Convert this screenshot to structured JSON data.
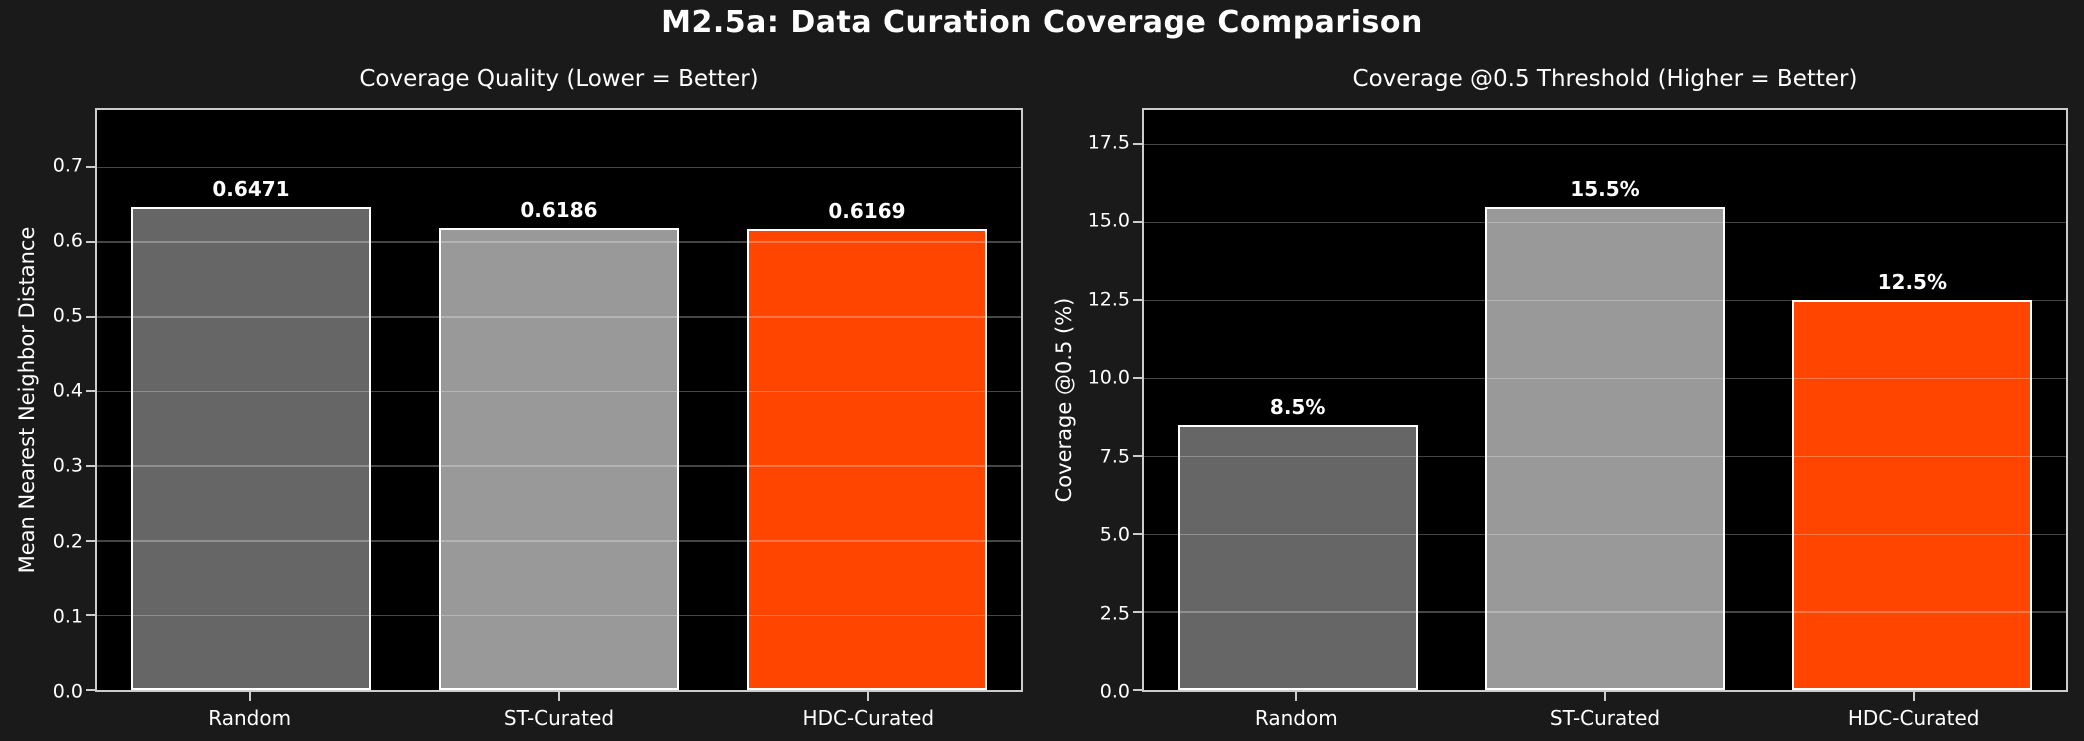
{
  "title": "M2.5a: Data Curation Coverage Comparison",
  "colors": {
    "figure_bg": "#1a1a1a",
    "plot_bg": "#000000",
    "text": "#ffffff",
    "spine": "#cccccc",
    "grid": "rgba(255,255,255,0.27)",
    "bar_edge": "#ffffff"
  },
  "chart_data": [
    {
      "type": "bar",
      "title": "Coverage Quality (Lower = Better)",
      "xlabel": "",
      "ylabel": "Mean Nearest Neighbor Distance",
      "categories": [
        "Random",
        "ST-Curated",
        "HDC-Curated"
      ],
      "values": [
        0.6471,
        0.6186,
        0.6169
      ],
      "value_labels": [
        "0.6471",
        "0.6186",
        "0.6169"
      ],
      "bar_colors": [
        "#666666",
        "#999999",
        "#ff4500"
      ],
      "ylim": [
        0,
        0.7765
      ],
      "yticks": [
        0.0,
        0.1,
        0.2,
        0.3,
        0.4,
        0.5,
        0.6,
        0.7
      ],
      "ytick_labels": [
        "0.0",
        "0.1",
        "0.2",
        "0.3",
        "0.4",
        "0.5",
        "0.6",
        "0.7"
      ],
      "grid": true,
      "legend": null
    },
    {
      "type": "bar",
      "title": "Coverage @0.5 Threshold (Higher = Better)",
      "xlabel": "",
      "ylabel": "Coverage @0.5 (%)",
      "categories": [
        "Random",
        "ST-Curated",
        "HDC-Curated"
      ],
      "values": [
        8.5,
        15.5,
        12.5
      ],
      "value_labels": [
        "8.5%",
        "15.5%",
        "12.5%"
      ],
      "bar_colors": [
        "#666666",
        "#999999",
        "#ff4500"
      ],
      "ylim": [
        0,
        18.6
      ],
      "yticks": [
        0.0,
        2.5,
        5.0,
        7.5,
        10.0,
        12.5,
        15.0,
        17.5
      ],
      "ytick_labels": [
        "0.0",
        "2.5",
        "5.0",
        "7.5",
        "10.0",
        "12.5",
        "15.0",
        "17.5"
      ],
      "grid": true,
      "legend": null
    }
  ]
}
